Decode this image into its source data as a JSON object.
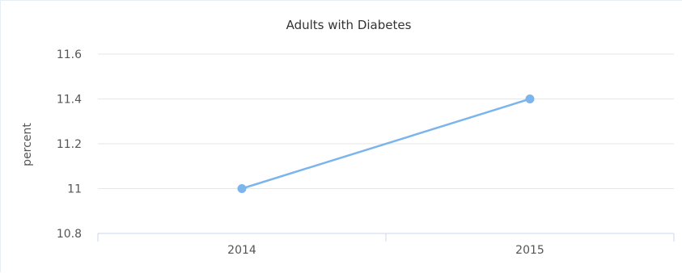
{
  "chart_data": {
    "type": "line",
    "title": "Adults with Diabetes",
    "xlabel": "",
    "ylabel": "percent",
    "categories": [
      "2014",
      "2015"
    ],
    "series": [
      {
        "values": [
          11.0,
          11.4
        ],
        "color": "#7cb5ec"
      }
    ],
    "ylim": [
      10.8,
      11.6
    ],
    "yticks": [
      10.8,
      11.0,
      11.2,
      11.4,
      11.6
    ],
    "ytick_labels": [
      "10.8",
      "11",
      "11.2",
      "11.4",
      "11.6"
    ],
    "grid": true,
    "legend": "none"
  }
}
